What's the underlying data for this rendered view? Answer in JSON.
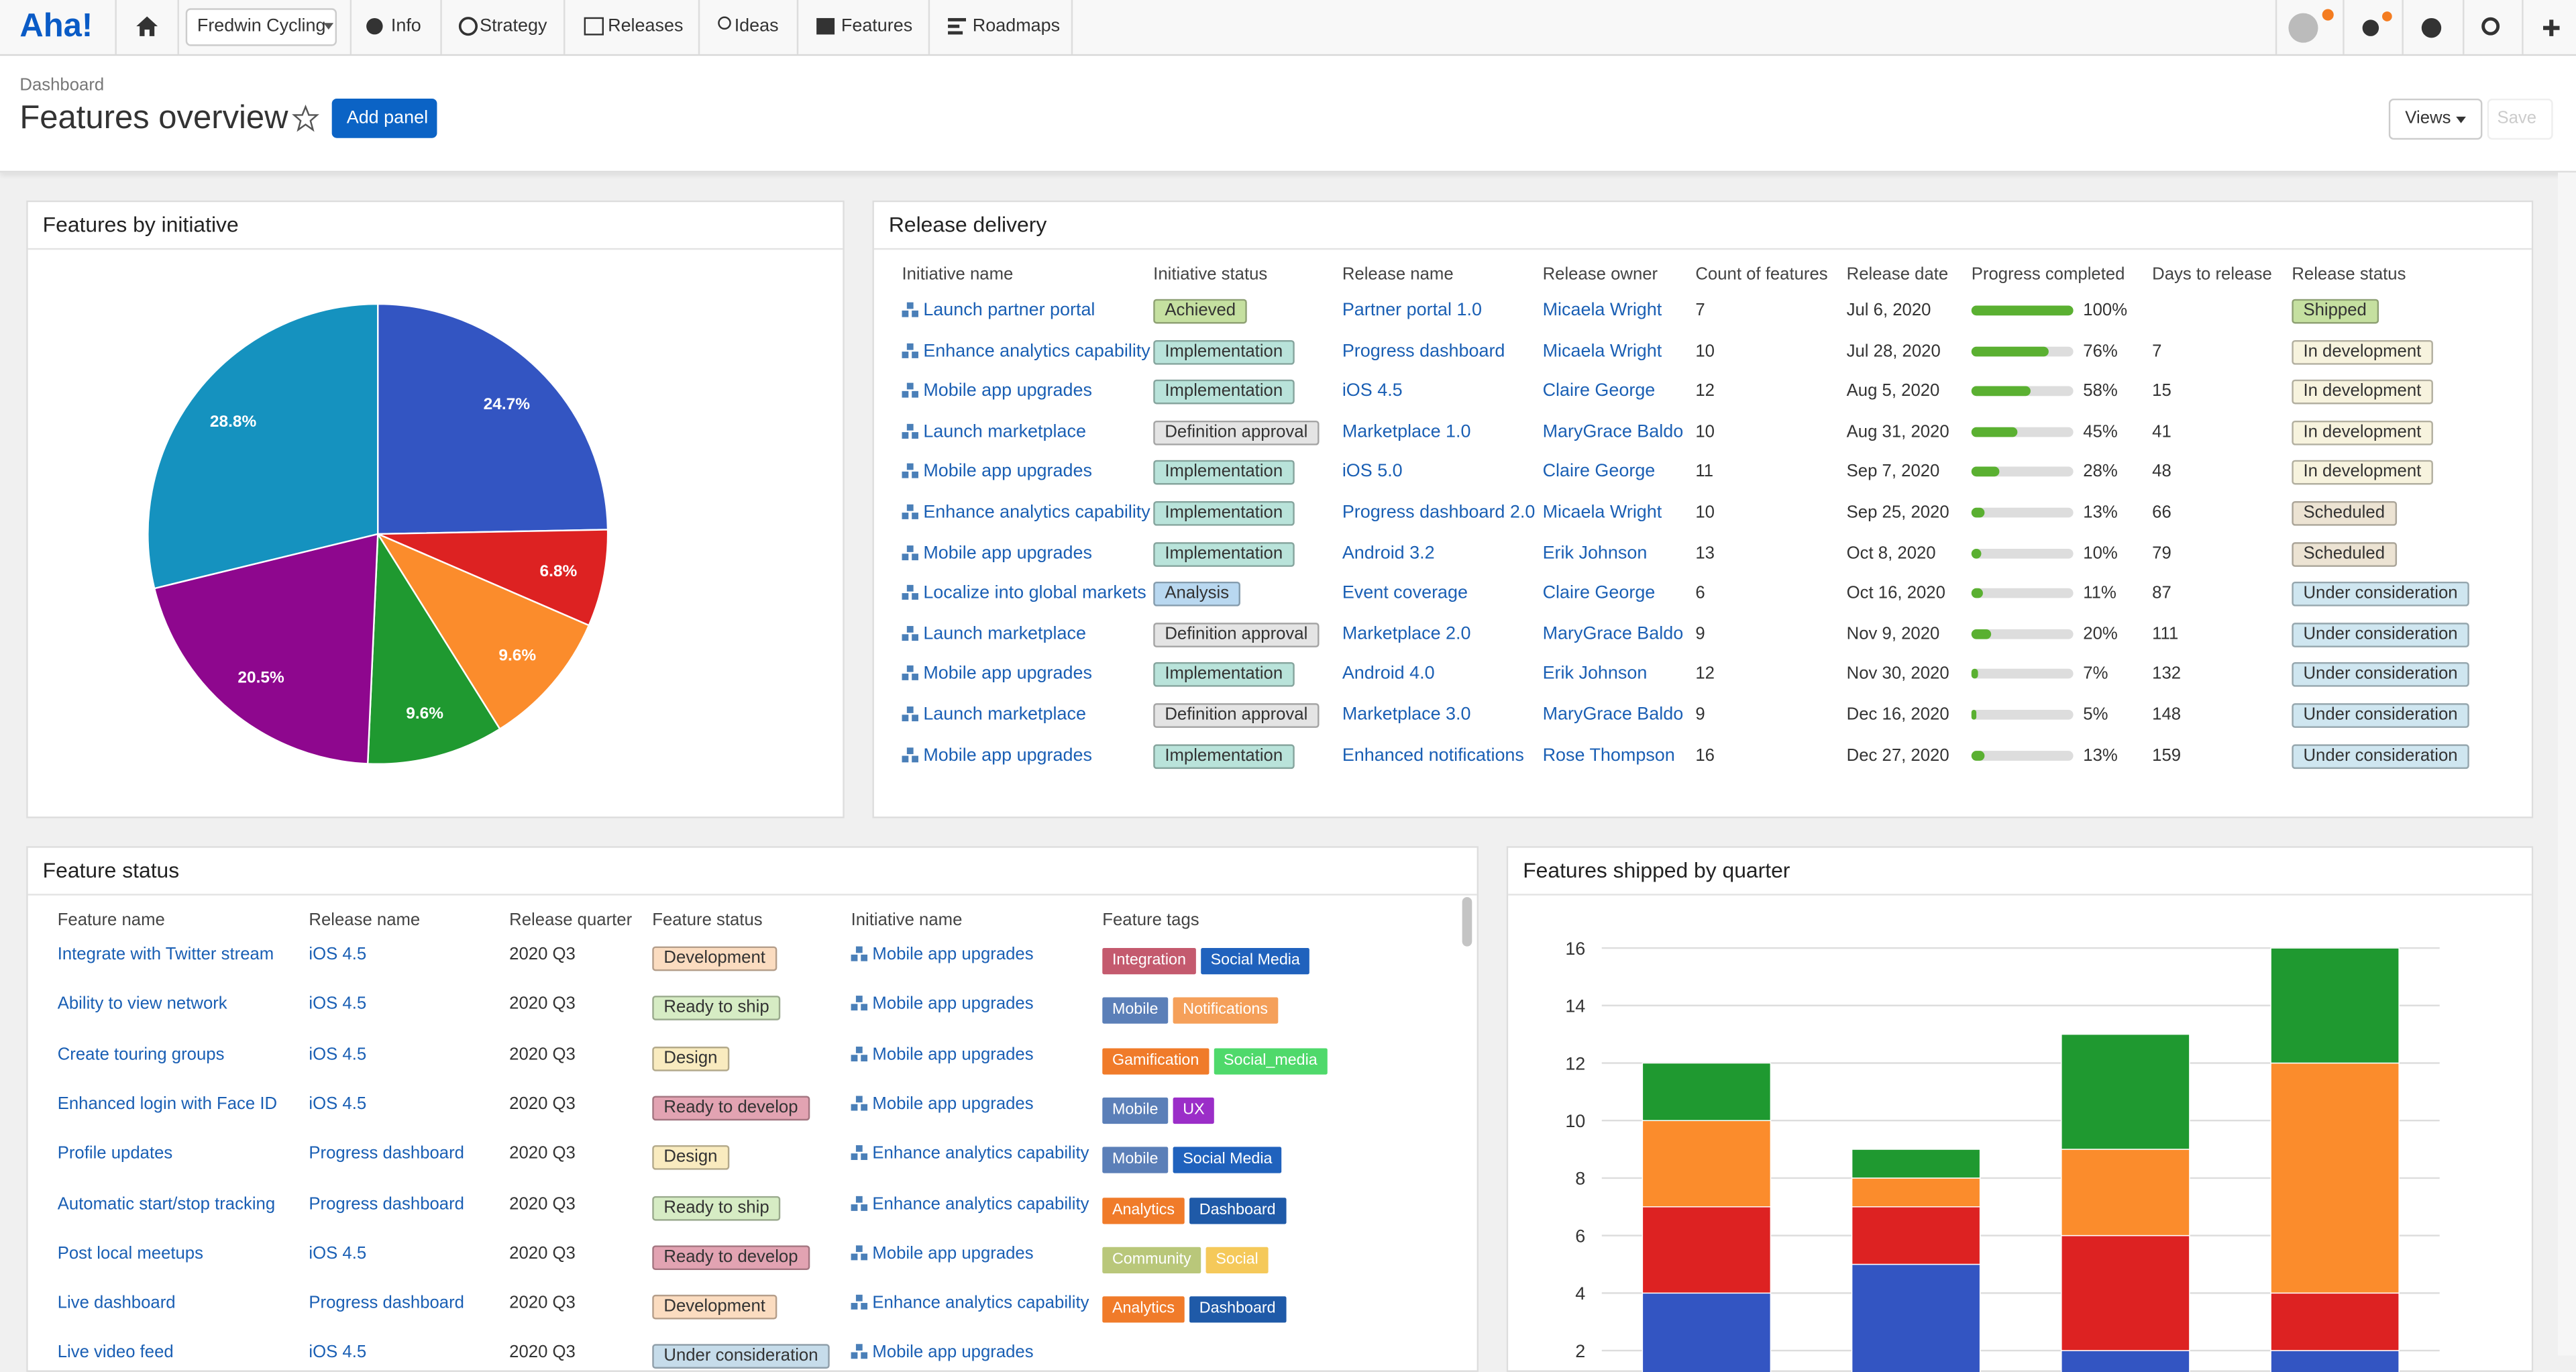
{
  "nav": {
    "logo": "Aha!",
    "workspace": "Fredwin Cycling",
    "items": [
      "Info",
      "Strategy",
      "Releases",
      "Ideas",
      "Features",
      "Roadmaps"
    ]
  },
  "header": {
    "breadcrumb": "Dashboard",
    "title": "Features overview",
    "add_button": "Add panel",
    "views": "Views",
    "save": "Save"
  },
  "chart_data": [
    {
      "type": "pie",
      "title": "Features by initiative",
      "values": [
        24.7,
        6.8,
        9.6,
        9.6,
        20.5,
        28.8
      ],
      "value_labels": [
        "24.7%",
        "6.8%",
        "9.6%",
        "9.6%",
        "20.5%",
        "28.8%"
      ],
      "colors": [
        "#3355c2",
        "#dd2222",
        "#fb8c2c",
        "#1f9930",
        "#8e078e",
        "#1592bf"
      ]
    },
    {
      "type": "stacked_bar",
      "title": "Features shipped by quarter",
      "categories": [
        null,
        null,
        null,
        null
      ],
      "series": [
        {
          "color": "#3355c2",
          "values": [
            4,
            5,
            2,
            2
          ]
        },
        {
          "color": "#dd2222",
          "values": [
            3,
            2,
            4,
            2
          ]
        },
        {
          "color": "#fb8c2c",
          "values": [
            3,
            1,
            3,
            8
          ]
        },
        {
          "color": "#1f9930",
          "values": [
            2,
            1,
            4,
            4
          ]
        }
      ],
      "ylim": [
        0,
        16
      ],
      "yticks": [
        2,
        4,
        6,
        8,
        10,
        12,
        14,
        16
      ],
      "grid": true
    }
  ],
  "release_delivery": {
    "title": "Release delivery",
    "columns": [
      "Initiative name",
      "Initiative status",
      "Release name",
      "Release owner",
      "Count of features",
      "Release date",
      "Progress completed",
      "Days to release",
      "Release status"
    ],
    "rows": [
      [
        "Launch partner portal",
        "Achieved",
        "Partner portal 1.0",
        "Micaela Wright",
        7,
        "Jul 6, 2020",
        {
          "value": 100,
          "label": "100%"
        },
        null,
        "Shipped"
      ],
      [
        "Enhance analytics capability",
        "Implementation",
        "Progress dashboard",
        "Micaela Wright",
        10,
        "Jul 28, 2020",
        {
          "value": 76,
          "label": "76%"
        },
        7,
        "In development"
      ],
      [
        "Mobile app upgrades",
        "Implementation",
        "iOS 4.5",
        "Claire George",
        12,
        "Aug 5, 2020",
        {
          "value": 58,
          "label": "58%"
        },
        15,
        "In development"
      ],
      [
        "Launch marketplace",
        "Definition approval",
        "Marketplace 1.0",
        "MaryGrace Baldo",
        10,
        "Aug 31, 2020",
        {
          "value": 45,
          "label": "45%"
        },
        41,
        "In development"
      ],
      [
        "Mobile app upgrades",
        "Implementation",
        "iOS 5.0",
        "Claire George",
        11,
        "Sep 7, 2020",
        {
          "value": 28,
          "label": "28%"
        },
        48,
        "In development"
      ],
      [
        "Enhance analytics capability",
        "Implementation",
        "Progress dashboard 2.0",
        "Micaela Wright",
        10,
        "Sep 25, 2020",
        {
          "value": 13,
          "label": "13%"
        },
        66,
        "Scheduled"
      ],
      [
        "Mobile app upgrades",
        "Implementation",
        "Android 3.2",
        "Erik Johnson",
        13,
        "Oct 8, 2020",
        {
          "value": 10,
          "label": "10%"
        },
        79,
        "Scheduled"
      ],
      [
        "Localize into global markets",
        "Analysis",
        "Event coverage",
        "Claire George",
        6,
        "Oct 16, 2020",
        {
          "value": 11,
          "label": "11%"
        },
        87,
        "Under consideration"
      ],
      [
        "Launch marketplace",
        "Definition approval",
        "Marketplace 2.0",
        "MaryGrace Baldo",
        9,
        "Nov 9, 2020",
        {
          "value": 20,
          "label": "20%"
        },
        111,
        "Under consideration"
      ],
      [
        "Mobile app upgrades",
        "Implementation",
        "Android 4.0",
        "Erik Johnson",
        12,
        "Nov 30, 2020",
        {
          "value": 7,
          "label": "7%"
        },
        132,
        "Under consideration"
      ],
      [
        "Launch marketplace",
        "Definition approval",
        "Marketplace 3.0",
        "MaryGrace Baldo",
        9,
        "Dec 16, 2020",
        {
          "value": 5,
          "label": "5%"
        },
        148,
        "Under consideration"
      ],
      [
        "Mobile app upgrades",
        "Implementation",
        "Enhanced notifications",
        "Rose Thompson",
        16,
        "Dec 27, 2020",
        {
          "value": 13,
          "label": "13%"
        },
        159,
        "Under consideration"
      ]
    ],
    "badge_colors": {
      "Achieved": "#c5e0a0",
      "Implementation": "#b9e3da",
      "Definition approval": "#e4e4e4",
      "Analysis": "#b9d8f0",
      "Shipped": "#c5e0a0",
      "In development": "#f7f3de",
      "Scheduled": "#ece3d3",
      "Under consideration": "#cfe6f0"
    },
    "progress_color": "#5ab031"
  },
  "feature_status": {
    "title": "Feature status",
    "columns": [
      "Feature name",
      "Release name",
      "Release quarter",
      "Feature status",
      "Initiative name",
      "Feature tags"
    ],
    "rows": [
      [
        "Integrate with Twitter stream",
        "iOS 4.5",
        "2020 Q3",
        "Development",
        "Mobile app upgrades",
        [
          "Integration",
          "Social Media"
        ]
      ],
      [
        "Ability to view network",
        "iOS 4.5",
        "2020 Q3",
        "Ready to ship",
        "Mobile app upgrades",
        [
          "Mobile",
          "Notifications"
        ]
      ],
      [
        "Create touring groups",
        "iOS 4.5",
        "2020 Q3",
        "Design",
        "Mobile app upgrades",
        [
          "Gamification",
          "Social_media"
        ]
      ],
      [
        "Enhanced login with Face ID",
        "iOS 4.5",
        "2020 Q3",
        "Ready to develop",
        "Mobile app upgrades",
        [
          "Mobile",
          "UX"
        ]
      ],
      [
        "Profile updates",
        "Progress dashboard",
        "2020 Q3",
        "Design",
        "Enhance analytics capability",
        [
          "Mobile",
          "Social Media"
        ]
      ],
      [
        "Automatic start/stop tracking",
        "Progress dashboard",
        "2020 Q3",
        "Ready to ship",
        "Enhance analytics capability",
        [
          "Analytics",
          "Dashboard"
        ]
      ],
      [
        "Post local meetups",
        "iOS 4.5",
        "2020 Q3",
        "Ready to develop",
        "Mobile app upgrades",
        [
          "Community",
          "Social"
        ]
      ],
      [
        "Live dashboard",
        "Progress dashboard",
        "2020 Q3",
        "Development",
        "Enhance analytics capability",
        [
          "Analytics",
          "Dashboard"
        ]
      ],
      [
        "Live video feed",
        "iOS 4.5",
        "2020 Q3",
        "Under consideration",
        "Mobile app upgrades"
      ]
    ],
    "badge_colors": {
      "Development": "#fbdcc0",
      "Ready to ship": "#d6ecc4",
      "Design": "#f9ebbf",
      "Ready to develop": "#e2a3b2",
      "Under consideration": "#c6dcea"
    },
    "tag_colors": {
      "Integration": "#c45a6e",
      "Social Media": "#2062bd",
      "Mobile": "#5b7fb8",
      "Notifications": "#f5a05a",
      "Gamification": "#f07b2a",
      "Social_media": "#4fd96b",
      "UX": "#9b2ec8",
      "Analytics": "#f07b2a",
      "Dashboard": "#1f5aa8",
      "Community": "#b9c77a",
      "Social": "#f5c95a"
    }
  }
}
